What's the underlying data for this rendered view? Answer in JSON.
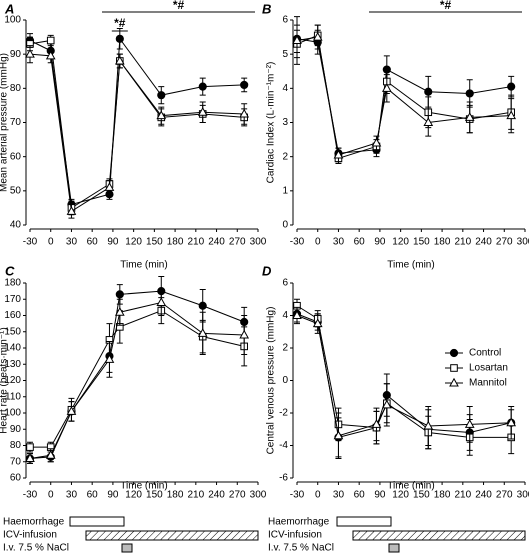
{
  "chart_data": [
    {
      "type": "line",
      "panel_label": "A",
      "ylabel": "Mean arterial pressure (mmHg)",
      "xlabel": "Time (min)",
      "x": [
        -30,
        0,
        30,
        85,
        100,
        160,
        220,
        280
      ],
      "xlim": [
        -30,
        300
      ],
      "xticks": [
        -30,
        0,
        30,
        60,
        90,
        120,
        150,
        180,
        210,
        240,
        270,
        300
      ],
      "ylim": [
        40,
        100
      ],
      "yticks": [
        40,
        50,
        60,
        70,
        80,
        90,
        100
      ],
      "annotations": [
        "*#",
        "*#"
      ],
      "series": [
        {
          "marker": "circle",
          "color": "#000000",
          "values": [
            94,
            91,
            46,
            49,
            94.5,
            78,
            80.5,
            81
          ],
          "errors": [
            2,
            2,
            1.5,
            1.5,
            3,
            2.5,
            2.5,
            2
          ]
        },
        {
          "marker": "square",
          "color": "#000000",
          "values": [
            93,
            94,
            45,
            52,
            88,
            71.5,
            72.5,
            71.5
          ],
          "errors": [
            2,
            1.5,
            2,
            1.5,
            2,
            2.5,
            2.5,
            2.5
          ]
        },
        {
          "marker": "triangle",
          "color": "#000000",
          "values": [
            90,
            89.5,
            44,
            51,
            88,
            72,
            73,
            72.5
          ],
          "errors": [
            2.5,
            2,
            2,
            2,
            2,
            2.5,
            3,
            3
          ]
        }
      ]
    },
    {
      "type": "line",
      "panel_label": "B",
      "ylabel": "Cardiac Index (L·min⁻¹m⁻²)",
      "xlabel": "Time (min)",
      "x": [
        -30,
        0,
        30,
        85,
        100,
        160,
        220,
        280
      ],
      "xlim": [
        -30,
        300
      ],
      "xticks": [
        -30,
        0,
        30,
        60,
        90,
        120,
        150,
        180,
        210,
        240,
        270,
        300
      ],
      "ylim": [
        0,
        6
      ],
      "yticks": [
        0,
        1,
        2,
        3,
        4,
        5,
        6
      ],
      "annotations": [
        "*#"
      ],
      "series": [
        {
          "marker": "circle",
          "color": "#000000",
          "values": [
            5.45,
            5.35,
            2.1,
            2.2,
            4.55,
            3.9,
            3.85,
            4.05
          ],
          "errors": [
            0.4,
            0.35,
            0.15,
            0.2,
            0.4,
            0.45,
            0.4,
            0.3
          ]
        },
        {
          "marker": "square",
          "color": "#000000",
          "values": [
            5.3,
            5.55,
            1.95,
            2.3,
            4.2,
            3.3,
            3.1,
            3.3
          ],
          "errors": [
            0.4,
            0.3,
            0.15,
            0.2,
            0.35,
            0.45,
            0.4,
            0.5
          ]
        },
        {
          "marker": "triangle",
          "color": "#000000",
          "values": [
            5.4,
            5.5,
            2.05,
            2.4,
            4.0,
            3.0,
            3.15,
            3.2
          ],
          "errors": [
            0.7,
            0.35,
            0.2,
            0.2,
            0.4,
            0.4,
            0.45,
            0.5
          ]
        }
      ]
    },
    {
      "type": "line",
      "panel_label": "C",
      "ylabel": "Heart rate (beats·min⁻¹)",
      "xlabel": "Time (min)",
      "x": [
        -30,
        0,
        30,
        85,
        100,
        160,
        220,
        280
      ],
      "xlim": [
        -30,
        300
      ],
      "xticks": [
        -30,
        0,
        30,
        60,
        90,
        120,
        150,
        180,
        210,
        240,
        270,
        300
      ],
      "ylim": [
        60,
        180
      ],
      "yticks": [
        60,
        70,
        80,
        90,
        100,
        110,
        120,
        130,
        140,
        150,
        160,
        170,
        180
      ],
      "series": [
        {
          "marker": "circle",
          "color": "#000000",
          "values": [
            72,
            73,
            101,
            135,
            173,
            175,
            166,
            156
          ],
          "errors": [
            3,
            3,
            6,
            10,
            6,
            9,
            10,
            9
          ]
        },
        {
          "marker": "square",
          "color": "#000000",
          "values": [
            79,
            79,
            102,
            145,
            153,
            163,
            147,
            141
          ],
          "errors": [
            3,
            3,
            7,
            10,
            10,
            8,
            10,
            12
          ]
        },
        {
          "marker": "triangle",
          "color": "#000000",
          "values": [
            72,
            74,
            101,
            133,
            162,
            168,
            149,
            148
          ],
          "errors": [
            3,
            4,
            6,
            11,
            8,
            8,
            13,
            12
          ]
        }
      ]
    },
    {
      "type": "line",
      "panel_label": "D",
      "ylabel": "Central venous pressure (mmHg)",
      "xlabel": "Time (min)",
      "x": [
        -30,
        0,
        30,
        85,
        100,
        160,
        220,
        280
      ],
      "xlim": [
        -30,
        300
      ],
      "xticks": [
        -30,
        0,
        30,
        60,
        90,
        120,
        150,
        180,
        210,
        240,
        270,
        300
      ],
      "ylim": [
        -6,
        6
      ],
      "yticks": [
        -6,
        -4,
        -2,
        0,
        2,
        4,
        6
      ],
      "legend": true,
      "series": [
        {
          "name": "Control",
          "marker": "circle",
          "color": "#000000",
          "values": [
            4.1,
            3.6,
            -3.5,
            -2.9,
            -0.9,
            -3.0,
            -3.2,
            -2.6
          ],
          "errors": [
            0.5,
            0.5,
            1.2,
            1.0,
            1.3,
            1.2,
            1.1,
            0.8
          ]
        },
        {
          "name": "Losartan",
          "marker": "square",
          "color": "#000000",
          "values": [
            4.6,
            3.8,
            -2.7,
            -2.9,
            -1.4,
            -3.2,
            -3.5,
            -3.5
          ],
          "errors": [
            0.4,
            0.5,
            1.0,
            1.0,
            1.2,
            1.0,
            1.1,
            1.0
          ]
        },
        {
          "name": "Mannitol",
          "marker": "triangle",
          "color": "#000000",
          "values": [
            4.0,
            3.5,
            -3.4,
            -2.7,
            -1.5,
            -2.8,
            -2.7,
            -2.6
          ],
          "errors": [
            0.5,
            0.6,
            1.4,
            1.0,
            1.3,
            1.2,
            1.1,
            1.0
          ]
        }
      ]
    }
  ],
  "protocol": [
    "Haemorrhage",
    "ICV-infusion",
    "I.v. 7.5 % NaCl"
  ]
}
